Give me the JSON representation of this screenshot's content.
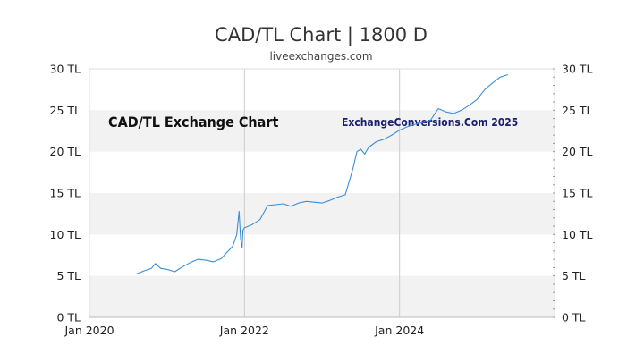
{
  "chart_data": {
    "type": "line",
    "title": "CAD/TL Chart | 1800 D",
    "subtitle": "liveexchanges.com",
    "annotation_left": "CAD/TL Exchange Chart",
    "annotation_right": "ExchangeConversions.Com 2025",
    "xlabel": "",
    "ylabel": "",
    "x_tick_labels": [
      "Jan 2020",
      "Jan 2022",
      "Jan 2024"
    ],
    "x_ticks": [
      2020.0,
      2022.0,
      2024.0
    ],
    "xlim": [
      2020.0,
      2026.0
    ],
    "y_tick_labels": [
      "0 TL",
      "5 TL",
      "10 TL",
      "15 TL",
      "20 TL",
      "25 TL",
      "30 TL"
    ],
    "y_ticks": [
      0,
      5,
      10,
      15,
      20,
      25,
      30
    ],
    "ylim": [
      0,
      30
    ],
    "grid": true,
    "line_color": "#3b8fd6",
    "band_color": "#f2f2f2",
    "series": [
      {
        "name": "CAD/TL",
        "x": [
          2020.6,
          2020.7,
          2020.8,
          2020.85,
          2020.92,
          2021.0,
          2021.1,
          2021.2,
          2021.3,
          2021.4,
          2021.5,
          2021.6,
          2021.7,
          2021.8,
          2021.85,
          2021.9,
          2021.93,
          2021.95,
          2021.97,
          2021.98,
          2022.0,
          2022.1,
          2022.2,
          2022.3,
          2022.4,
          2022.5,
          2022.6,
          2022.7,
          2022.8,
          2022.9,
          2023.0,
          2023.1,
          2023.2,
          2023.3,
          2023.4,
          2023.45,
          2023.5,
          2023.55,
          2023.6,
          2023.7,
          2023.8,
          2023.9,
          2024.0,
          2024.1,
          2024.2,
          2024.3,
          2024.4,
          2024.5,
          2024.6,
          2024.7,
          2024.8,
          2024.9,
          2025.0,
          2025.1,
          2025.2,
          2025.3,
          2025.4
        ],
        "y": [
          5.2,
          5.6,
          5.9,
          6.5,
          5.9,
          5.8,
          5.5,
          6.1,
          6.6,
          7.0,
          6.9,
          6.7,
          7.1,
          8.1,
          8.6,
          10.0,
          12.8,
          9.5,
          8.4,
          10.5,
          10.8,
          11.2,
          11.8,
          13.5,
          13.6,
          13.7,
          13.4,
          13.8,
          14.0,
          13.9,
          13.8,
          14.1,
          14.5,
          14.8,
          18.0,
          20.0,
          20.3,
          19.7,
          20.5,
          21.2,
          21.5,
          22.0,
          22.6,
          23.0,
          23.3,
          23.5,
          23.8,
          25.2,
          24.8,
          24.6,
          25.0,
          25.6,
          26.3,
          27.5,
          28.3,
          29.0,
          29.3
        ]
      }
    ]
  }
}
